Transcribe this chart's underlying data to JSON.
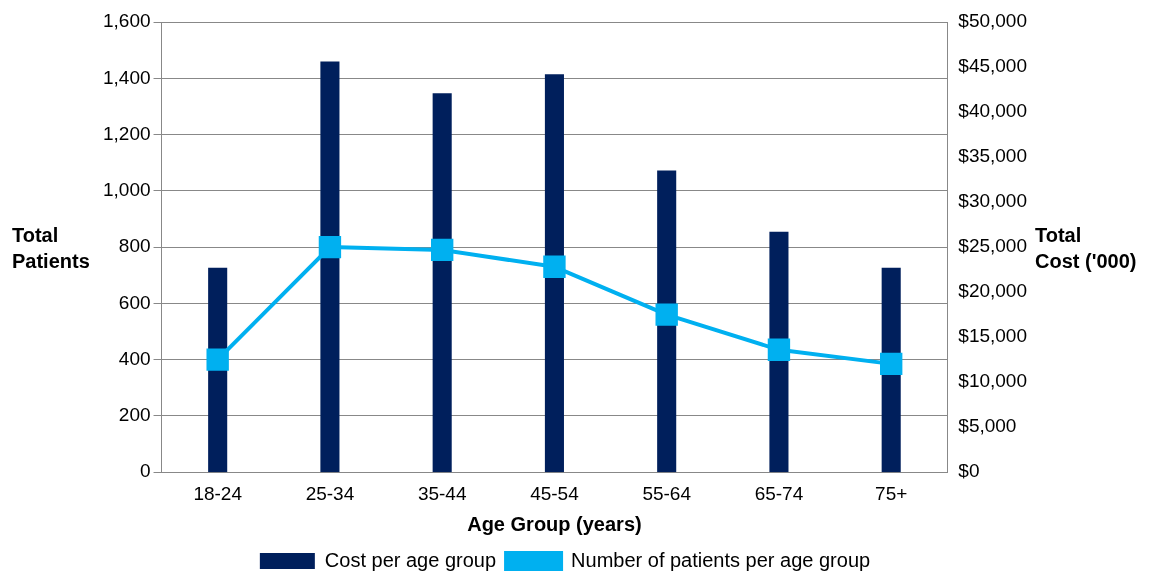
{
  "chart_data": {
    "type": "bar",
    "xlabel": "Age Group (years)",
    "ylabel": "Total Patients",
    "y2label": "Total Cost ('000)",
    "categories": [
      "18-24",
      "25-34",
      "35-44",
      "45-54",
      "55-64",
      "65-74",
      "75+"
    ],
    "series": [
      {
        "name": "Cost per age group",
        "axis": "y2",
        "color": "#001f5c",
        "values": [
          22700,
          45600,
          42100,
          44200,
          33500,
          26700,
          22700
        ]
      },
      {
        "name": "Number of patients per age group",
        "type": "line",
        "axis": "y",
        "color": "#00b0f0",
        "values": [
          400,
          800,
          790,
          730,
          560,
          435,
          385
        ]
      }
    ],
    "ylim": [
      0,
      1600
    ],
    "yticks": [
      {
        "value": 0,
        "label": "0"
      },
      {
        "value": 200,
        "label": "200"
      },
      {
        "value": 400,
        "label": "400"
      },
      {
        "value": 600,
        "label": "600"
      },
      {
        "value": 800,
        "label": "800"
      },
      {
        "value": 1000,
        "label": "1,000"
      },
      {
        "value": 1200,
        "label": "1,200"
      },
      {
        "value": 1400,
        "label": "1,400"
      },
      {
        "value": 1600,
        "label": "1,600"
      }
    ],
    "y2lim": [
      0,
      50000
    ],
    "y2ticks": [
      {
        "value": 0,
        "label": "$0"
      },
      {
        "value": 5000,
        "label": "$5,000"
      },
      {
        "value": 10000,
        "label": "$10,000"
      },
      {
        "value": 15000,
        "label": "$15,000"
      },
      {
        "value": 20000,
        "label": "$20,000"
      },
      {
        "value": 25000,
        "label": "$25,000"
      },
      {
        "value": 30000,
        "label": "$30,000"
      },
      {
        "value": 35000,
        "label": "$35,000"
      },
      {
        "value": 40000,
        "label": "$40,000"
      },
      {
        "value": 45000,
        "label": "$45,000"
      },
      {
        "value": 50000,
        "label": "$50,000"
      }
    ],
    "grid": "y",
    "legend": "bottom",
    "marker": "square",
    "line_style": "solid"
  }
}
